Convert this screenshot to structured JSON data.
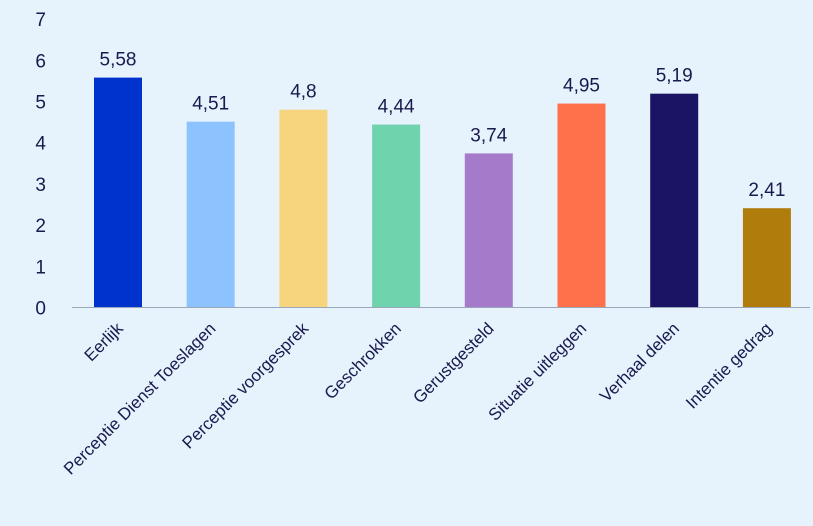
{
  "chart_data": {
    "type": "bar",
    "title": "",
    "xlabel": "",
    "ylabel": "",
    "ylim": [
      0,
      7
    ],
    "yticks": [
      0,
      1,
      2,
      3,
      4,
      5,
      6,
      7
    ],
    "grid": false,
    "categories": [
      "Eerlijk",
      "Perceptie Dienst Toeslagen",
      "Perceptie voorgesprek",
      "Geschrokken",
      "Gerustgesteld",
      "Situatie uitleggen",
      "Verhaal delen",
      "Intentie gedrag"
    ],
    "values": [
      5.58,
      4.51,
      4.8,
      4.44,
      3.74,
      4.95,
      5.19,
      2.41
    ],
    "value_labels": [
      "5,58",
      "4,51",
      "4,8",
      "4,44",
      "3,74",
      "4,95",
      "5,19",
      "2,41"
    ],
    "colors": [
      "#0033cc",
      "#8cc3ff",
      "#f7d47e",
      "#6fd3ae",
      "#a67acb",
      "#ff714b",
      "#1b1464",
      "#b07d0c"
    ]
  },
  "style": {
    "background": "#e6f2fc",
    "axis_color": "#9aa7b8",
    "text_color": "#1a1a4e"
  }
}
